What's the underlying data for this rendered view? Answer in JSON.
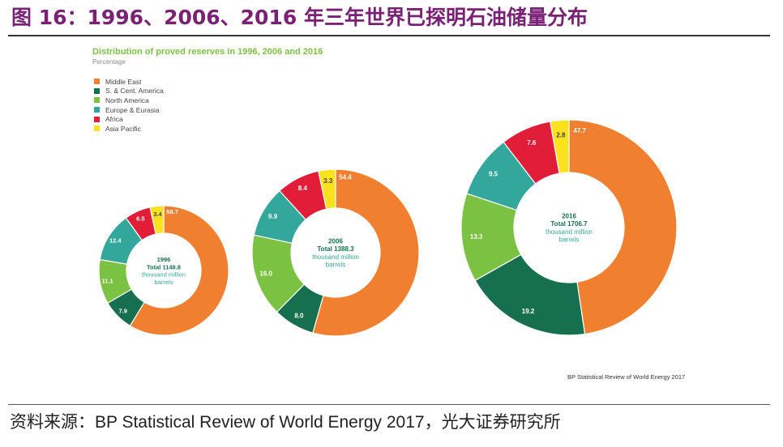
{
  "figure_title": "图 16：1996、2006、2016 年三年世界已探明石油储量分布",
  "footer": "资料来源：BP Statistical Review of World Energy 2017，光大证券研究所",
  "chart_data": {
    "type": "pie",
    "title": "Distribution of proved reserves in 1996, 2006 and 2016",
    "subtitle": "Percentage",
    "source_note": "BP Statistical Review of World Energy 2017",
    "legend_position": "top-left",
    "categories": [
      "Middle East",
      "S. & Cent. America",
      "North America",
      "Europe & Eurasia",
      "Africa",
      "Asia Pacific"
    ],
    "colors": [
      "#f07f2f",
      "#16704f",
      "#7cc242",
      "#33a79b",
      "#e21d38",
      "#fce11f"
    ],
    "series": [
      {
        "year": "1996",
        "total_label": "Total 1148.8",
        "unit_line1": "thousand million",
        "unit_line2": "barrels",
        "values": [
          58.7,
          7.9,
          11.1,
          12.4,
          6.5,
          3.4
        ],
        "labels": [
          "58.7",
          "7.9",
          "11.1",
          "12.4",
          "6.5",
          "3.4"
        ]
      },
      {
        "year": "2006",
        "total_label": "Total 1388.3",
        "unit_line1": "thousand million",
        "unit_line2": "barrels",
        "values": [
          54.4,
          8.0,
          16.0,
          9.9,
          8.4,
          3.3
        ],
        "labels": [
          "54.4",
          "8.0",
          "16.0",
          "9.9",
          "8.4",
          "3.3"
        ]
      },
      {
        "year": "2016",
        "total_label": "Total 1706.7",
        "unit_line1": "thousand million",
        "unit_line2": "barrels",
        "values": [
          47.7,
          19.2,
          13.3,
          9.5,
          7.6,
          2.8
        ],
        "labels": [
          "47.7",
          "19.2",
          "13.3",
          "9.5",
          "7.6",
          "2.8"
        ]
      }
    ]
  }
}
